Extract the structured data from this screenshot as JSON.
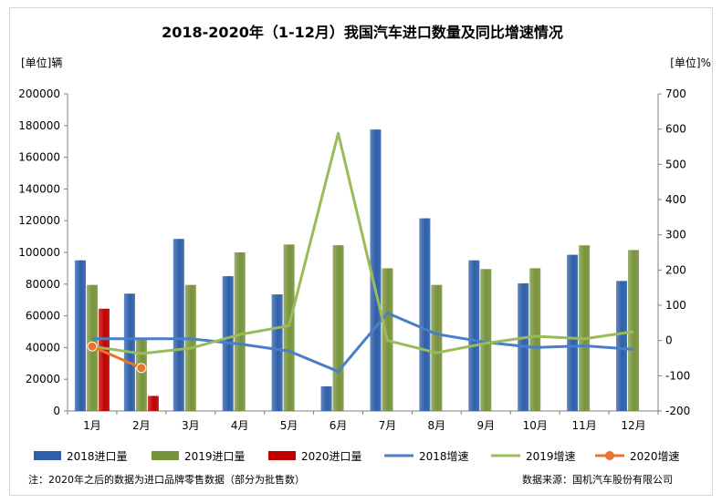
{
  "chart_data": {
    "type": "bar+line",
    "title": "2018-2020年（1-12月）我国汽车进口数量及同比增速情况",
    "left_axis_unit": "[单位]辆",
    "right_axis_unit": "[单位]%",
    "categories": [
      "1月",
      "2月",
      "3月",
      "4月",
      "5月",
      "6月",
      "7月",
      "8月",
      "9月",
      "10月",
      "11月",
      "12月"
    ],
    "left_ylim": [
      0,
      200000
    ],
    "left_ticks": [
      "0",
      "20000",
      "40000",
      "60000",
      "80000",
      "100000",
      "120000",
      "140000",
      "160000",
      "180000",
      "200000"
    ],
    "right_ylim": [
      -200,
      700
    ],
    "right_ticks": [
      "-200",
      "-100",
      "0",
      "100",
      "200",
      "300",
      "400",
      "500",
      "600",
      "700"
    ],
    "bar_series": [
      {
        "name": "2018进口量",
        "color": "#2e5fa8",
        "values": [
          95000,
          74000,
          108500,
          85000,
          73500,
          15500,
          177500,
          121500,
          95000,
          80500,
          98500,
          82000
        ]
      },
      {
        "name": "2019进口量",
        "color": "#77933c",
        "values": [
          79500,
          45000,
          79500,
          100000,
          105000,
          104500,
          90000,
          79500,
          89500,
          90000,
          104500,
          101500
        ]
      },
      {
        "name": "2020进口量",
        "color": "#c00000",
        "values": [
          64500,
          9500,
          null,
          null,
          null,
          null,
          null,
          null,
          null,
          null,
          null,
          null
        ]
      }
    ],
    "line_series": [
      {
        "name": "2018增速",
        "color": "#4a7ec8",
        "values": [
          5,
          5,
          5,
          -10,
          -30,
          -88,
          78,
          18,
          -5,
          -20,
          -15,
          -25
        ]
      },
      {
        "name": "2019增速",
        "color": "#9bbb59",
        "values": [
          -17,
          -37,
          -22,
          17,
          42,
          588,
          0,
          -35,
          -8,
          12,
          5,
          25
        ]
      },
      {
        "name": "2020增速",
        "color": "#e8732f",
        "values": [
          -17,
          -78,
          null,
          null,
          null,
          null,
          null,
          null,
          null,
          null,
          null,
          null
        ]
      }
    ],
    "grid": false,
    "legend_position": "bottom"
  },
  "footnote": "注：2020年之后的数据为进口品牌零售数据（部分为批售数）",
  "source": "数据来源：国机汽车股份有限公司"
}
